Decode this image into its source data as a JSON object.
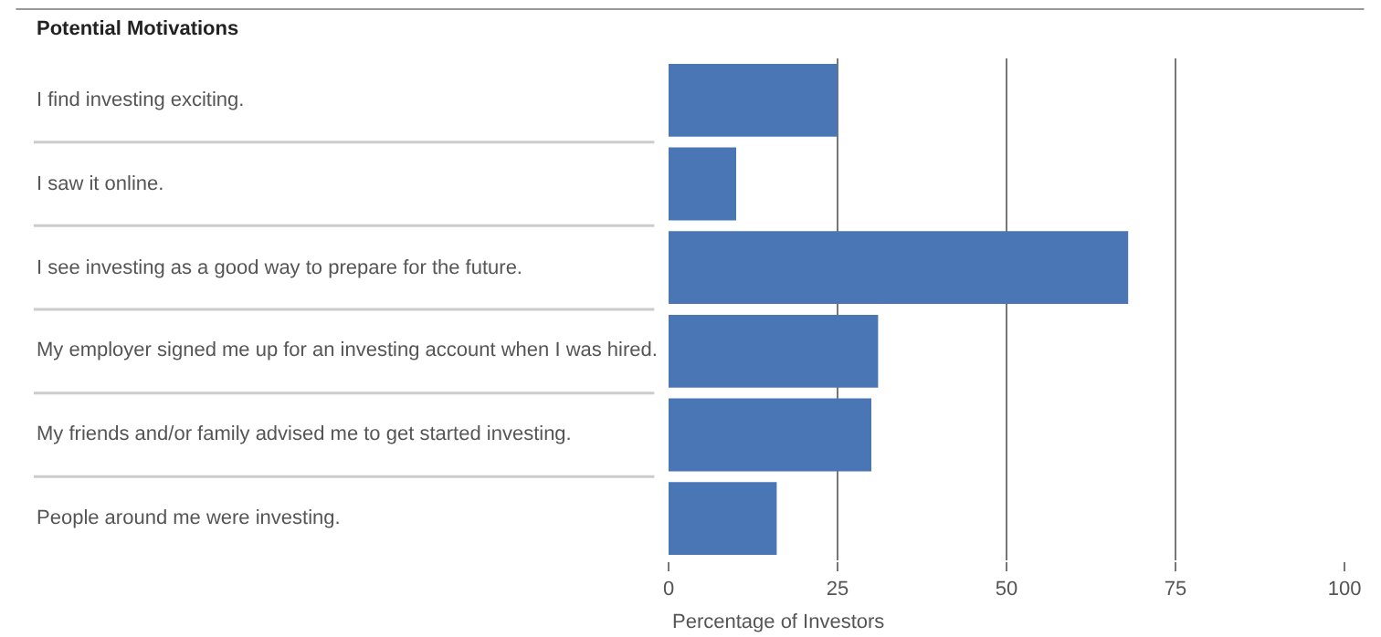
{
  "chart_data": {
    "type": "bar",
    "orientation": "horizontal",
    "title": "Potential Motivations",
    "xlabel": "Percentage of Investors",
    "categories": [
      "I find investing exciting.",
      "I saw it online.",
      "I see investing as a good way to prepare for the future.",
      "My employer signed me up for an investing account when I was hired.",
      "My friends and/or family advised me to get started investing.",
      "People around me were investing."
    ],
    "values": [
      25,
      10,
      68,
      31,
      30,
      16
    ],
    "color": "#4a76b6",
    "xlim": [
      0,
      100
    ],
    "xticks": [
      0,
      25,
      50,
      75,
      100
    ],
    "grid": "x",
    "legend": false
  }
}
